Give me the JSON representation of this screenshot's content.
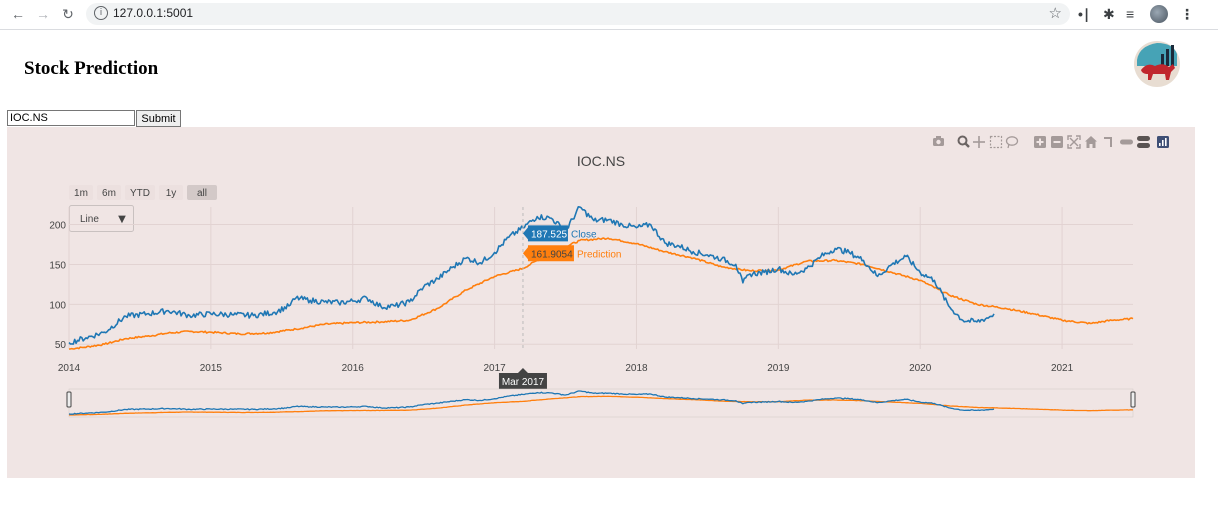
{
  "browser": {
    "url": "127.0.0.1:5001",
    "icons": [
      "back-arrow-icon",
      "forward-arrow-icon",
      "reload-icon",
      "info-icon",
      "star-icon",
      "extension-icon",
      "puzzle-icon",
      "reading-list-icon",
      "profile-avatar-icon",
      "kebab-menu-icon"
    ]
  },
  "page": {
    "title": "Stock Prediction",
    "logo": "bull-stock-chart-logo"
  },
  "form": {
    "ticker_value": "IOC.NS",
    "submit_label": "Submit"
  },
  "modebar": {
    "icons": [
      "camera-icon",
      "zoom-icon",
      "pan-icon",
      "box-select-icon",
      "lasso-select-icon",
      "zoom-in-icon",
      "zoom-out-icon",
      "autoscale-icon",
      "reset-axes-icon",
      "spike-lines-icon",
      "hover-closest-icon",
      "hover-compare-icon",
      "plotly-logo-icon"
    ]
  },
  "chart_data": {
    "type": "line",
    "title": "IOC.NS",
    "range_selector": [
      "1m",
      "6m",
      "YTD",
      "1y",
      "all"
    ],
    "active_range": "all",
    "dropdown": {
      "selected": "Line"
    },
    "xlim": [
      2014.0,
      2021.5
    ],
    "ylim": [
      44,
      222
    ],
    "x_ticks": [
      "2014",
      "2015",
      "2016",
      "2017",
      "2018",
      "2019",
      "2020",
      "2021"
    ],
    "y_ticks": [
      50,
      100,
      150,
      200
    ],
    "grid": true,
    "colors": {
      "close": "#1f77b4",
      "prediction": "#ff7f0e",
      "background": "#f0e5e4"
    },
    "series": [
      {
        "name": "Close",
        "points": [
          [
            2014.0,
            52
          ],
          [
            2014.12,
            58
          ],
          [
            2014.25,
            65
          ],
          [
            2014.4,
            85
          ],
          [
            2014.55,
            88
          ],
          [
            2014.7,
            92
          ],
          [
            2014.85,
            86
          ],
          [
            2015.0,
            88
          ],
          [
            2015.15,
            87
          ],
          [
            2015.3,
            86
          ],
          [
            2015.45,
            90
          ],
          [
            2015.55,
            98
          ],
          [
            2015.6,
            108
          ],
          [
            2015.7,
            105
          ],
          [
            2015.8,
            103
          ],
          [
            2015.9,
            102
          ],
          [
            2016.0,
            104
          ],
          [
            2016.1,
            108
          ],
          [
            2016.2,
            97
          ],
          [
            2016.3,
            98
          ],
          [
            2016.4,
            103
          ],
          [
            2016.5,
            122
          ],
          [
            2016.6,
            132
          ],
          [
            2016.7,
            146
          ],
          [
            2016.8,
            158
          ],
          [
            2016.9,
            152
          ],
          [
            2017.0,
            165
          ],
          [
            2017.1,
            184
          ],
          [
            2017.2,
            196
          ],
          [
            2017.3,
            210
          ],
          [
            2017.4,
            208
          ],
          [
            2017.5,
            192
          ],
          [
            2017.6,
            222
          ],
          [
            2017.7,
            205
          ],
          [
            2017.8,
            206
          ],
          [
            2017.9,
            200
          ],
          [
            2018.0,
            196
          ],
          [
            2018.1,
            200
          ],
          [
            2018.2,
            177
          ],
          [
            2018.3,
            173
          ],
          [
            2018.4,
            166
          ],
          [
            2018.5,
            162
          ],
          [
            2018.6,
            157
          ],
          [
            2018.7,
            150
          ],
          [
            2018.75,
            127
          ],
          [
            2018.8,
            138
          ],
          [
            2018.9,
            140
          ],
          [
            2019.0,
            145
          ],
          [
            2019.1,
            137
          ],
          [
            2019.2,
            145
          ],
          [
            2019.3,
            160
          ],
          [
            2019.4,
            170
          ],
          [
            2019.5,
            165
          ],
          [
            2019.6,
            155
          ],
          [
            2019.7,
            135
          ],
          [
            2019.8,
            150
          ],
          [
            2019.9,
            160
          ],
          [
            2020.0,
            140
          ],
          [
            2020.1,
            130
          ],
          [
            2020.2,
            98
          ],
          [
            2020.3,
            80
          ],
          [
            2020.4,
            78
          ],
          [
            2020.5,
            85
          ],
          [
            2020.52,
            88
          ]
        ]
      },
      {
        "name": "Prediction",
        "points": [
          [
            2014.0,
            44
          ],
          [
            2014.1,
            46
          ],
          [
            2014.25,
            50
          ],
          [
            2014.4,
            57
          ],
          [
            2014.55,
            60
          ],
          [
            2014.7,
            64
          ],
          [
            2014.85,
            66
          ],
          [
            2015.0,
            65
          ],
          [
            2015.2,
            63
          ],
          [
            2015.4,
            64
          ],
          [
            2015.6,
            69
          ],
          [
            2015.8,
            75
          ],
          [
            2016.0,
            77
          ],
          [
            2016.2,
            78
          ],
          [
            2016.4,
            80
          ],
          [
            2016.6,
            95
          ],
          [
            2016.8,
            118
          ],
          [
            2017.0,
            135
          ],
          [
            2017.2,
            145
          ],
          [
            2017.3,
            155
          ],
          [
            2017.4,
            164
          ],
          [
            2017.6,
            180
          ],
          [
            2017.8,
            183
          ],
          [
            2018.0,
            176
          ],
          [
            2018.2,
            166
          ],
          [
            2018.4,
            158
          ],
          [
            2018.6,
            147
          ],
          [
            2018.8,
            142
          ],
          [
            2019.0,
            143
          ],
          [
            2019.2,
            154
          ],
          [
            2019.4,
            155
          ],
          [
            2019.6,
            150
          ],
          [
            2019.8,
            140
          ],
          [
            2020.0,
            130
          ],
          [
            2020.2,
            112
          ],
          [
            2020.4,
            100
          ],
          [
            2020.6,
            95
          ],
          [
            2020.8,
            88
          ],
          [
            2021.0,
            80
          ],
          [
            2021.2,
            76
          ],
          [
            2021.35,
            80
          ],
          [
            2021.5,
            82
          ]
        ]
      }
    ],
    "hover": {
      "date_label": "Mar 2017",
      "close_value": "187.525",
      "close_label": "Close",
      "prediction_value": "161.9054",
      "prediction_label": "Prediction"
    }
  }
}
